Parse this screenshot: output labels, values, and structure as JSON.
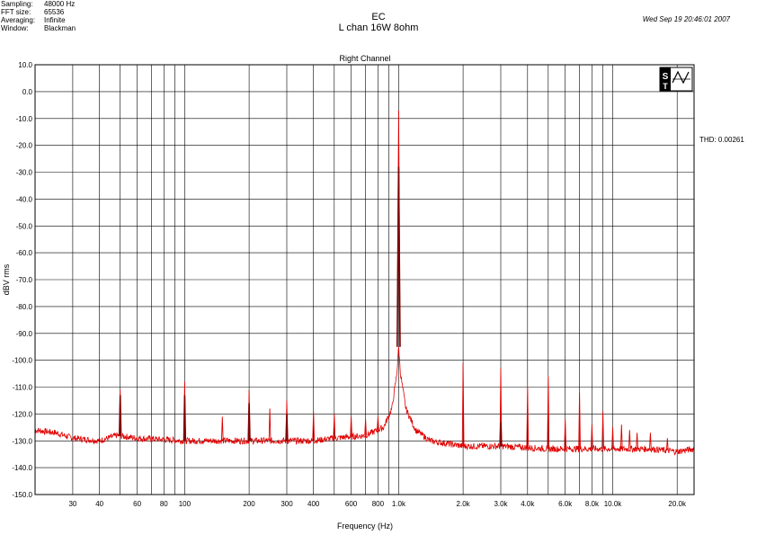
{
  "header": {
    "meta": [
      {
        "key": "Sampling:",
        "value": "48000 Hz"
      },
      {
        "key": "FFT size:",
        "value": "65536"
      },
      {
        "key": "Averaging:",
        "value": "Infinite"
      },
      {
        "key": "Window:",
        "value": "Blackman"
      }
    ],
    "title": "EC",
    "subtitle": "L chan 16W 8ohm",
    "datetime": "Wed Sep 19 20:46:01 2007",
    "thd": "THD: 0.00261"
  },
  "chart_data": {
    "type": "line",
    "title": "Right Channel",
    "xlabel": "Frequency (Hz)",
    "ylabel": "dBV rms",
    "x_scale": "log",
    "xlim": [
      20,
      24000
    ],
    "ylim": [
      -150,
      10
    ],
    "grid": true,
    "x_ticks": [
      {
        "value": 30,
        "label": "30"
      },
      {
        "value": 40,
        "label": "40"
      },
      {
        "value": 60,
        "label": "60"
      },
      {
        "value": 80,
        "label": "80"
      },
      {
        "value": 100,
        "label": "100"
      },
      {
        "value": 200,
        "label": "200"
      },
      {
        "value": 300,
        "label": "300"
      },
      {
        "value": 400,
        "label": "400"
      },
      {
        "value": 600,
        "label": "600"
      },
      {
        "value": 800,
        "label": "800"
      },
      {
        "value": 1000,
        "label": "1.0k"
      },
      {
        "value": 2000,
        "label": "2.0k"
      },
      {
        "value": 3000,
        "label": "3.0k"
      },
      {
        "value": 4000,
        "label": "4.0k"
      },
      {
        "value": 6000,
        "label": "6.0k"
      },
      {
        "value": 8000,
        "label": "8.0k"
      },
      {
        "value": 10000,
        "label": "10.0k"
      },
      {
        "value": 20000,
        "label": "20.0k"
      }
    ],
    "x_grid": [
      30,
      40,
      50,
      60,
      70,
      80,
      90,
      100,
      200,
      300,
      400,
      500,
      600,
      700,
      800,
      900,
      1000,
      2000,
      3000,
      4000,
      5000,
      6000,
      7000,
      8000,
      9000,
      10000,
      20000
    ],
    "y_ticks": [
      10,
      0,
      -10,
      -20,
      -30,
      -40,
      -50,
      -60,
      -70,
      -80,
      -90,
      -100,
      -110,
      -120,
      -130,
      -140,
      -150
    ],
    "y_tick_labels": [
      "10.0",
      "0.0",
      "-10.0",
      "-20.0",
      "-30.0",
      "-40.0",
      "-50.0",
      "-60.0",
      "-70.0",
      "-80.0",
      "-90.0",
      "-100.0",
      "-110.0",
      "-120.0",
      "-130.0",
      "-140.0",
      "-150.0"
    ],
    "series": [
      {
        "color": "#e00000",
        "noise_floor": [
          [
            20,
            -126
          ],
          [
            25,
            -127
          ],
          [
            30,
            -129
          ],
          [
            40,
            -130
          ],
          [
            48,
            -128
          ],
          [
            60,
            -129
          ],
          [
            100,
            -130
          ],
          [
            200,
            -130
          ],
          [
            300,
            -130
          ],
          [
            400,
            -130
          ],
          [
            500,
            -129
          ],
          [
            700,
            -128
          ],
          [
            850,
            -125
          ],
          [
            930,
            -118
          ],
          [
            980,
            -105
          ],
          [
            1000,
            -95
          ],
          [
            1020,
            -105
          ],
          [
            1080,
            -118
          ],
          [
            1200,
            -126
          ],
          [
            1400,
            -130
          ],
          [
            2000,
            -132
          ],
          [
            3000,
            -132
          ],
          [
            5000,
            -133
          ],
          [
            10000,
            -133
          ],
          [
            15000,
            -133
          ],
          [
            20000,
            -134
          ],
          [
            24000,
            -133
          ]
        ],
        "peaks": [
          {
            "f": 50,
            "db": -111
          },
          {
            "f": 100,
            "db": -108
          },
          {
            "f": 150,
            "db": -121
          },
          {
            "f": 200,
            "db": -111
          },
          {
            "f": 250,
            "db": -118
          },
          {
            "f": 300,
            "db": -115
          },
          {
            "f": 400,
            "db": -119
          },
          {
            "f": 500,
            "db": -120
          },
          {
            "f": 600,
            "db": -121
          },
          {
            "f": 700,
            "db": -122
          },
          {
            "f": 800,
            "db": -121
          },
          {
            "f": 1000,
            "db": -7
          },
          {
            "f": 2000,
            "db": -101
          },
          {
            "f": 3000,
            "db": -103
          },
          {
            "f": 4000,
            "db": -110
          },
          {
            "f": 5000,
            "db": -106
          },
          {
            "f": 6000,
            "db": -122
          },
          {
            "f": 7000,
            "db": -112
          },
          {
            "f": 8000,
            "db": -124
          },
          {
            "f": 9000,
            "db": -119
          },
          {
            "f": 10000,
            "db": -125
          },
          {
            "f": 11000,
            "db": -124
          },
          {
            "f": 12000,
            "db": -126
          },
          {
            "f": 13000,
            "db": -127
          },
          {
            "f": 15000,
            "db": -127
          },
          {
            "f": 18000,
            "db": -129
          }
        ]
      },
      {
        "color": "#800000",
        "peaks": [
          {
            "f": 50,
            "db": -113
          },
          {
            "f": 100,
            "db": -113
          },
          {
            "f": 200,
            "db": -116
          },
          {
            "f": 300,
            "db": -120
          },
          {
            "f": 1000,
            "db": -28
          },
          {
            "f": 3000,
            "db": -123
          }
        ]
      }
    ]
  }
}
